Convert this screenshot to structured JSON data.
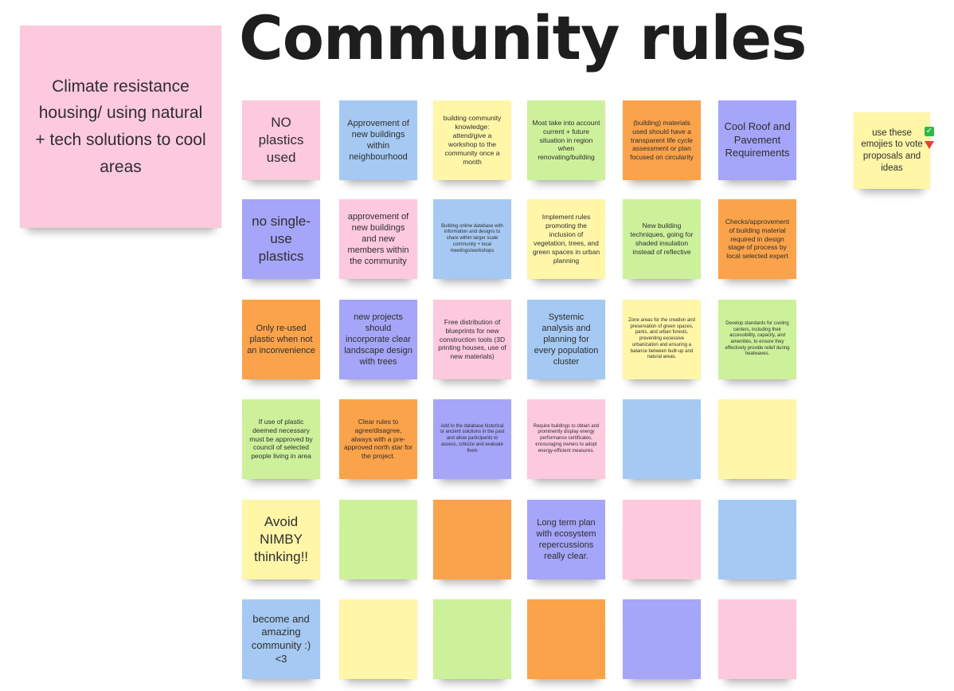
{
  "board": {
    "title": "Community rules",
    "theme_note": "Climate resistance housing/ using natural + tech solutions to cool areas",
    "vote_note": "use these emojies to vote proposals and ideas",
    "vote_icons": [
      "check-icon",
      "red-down-triangle-icon"
    ]
  },
  "colors": {
    "pink": "#fdc9dd",
    "blue": "#a5c9f3",
    "yellow": "#fff6a8",
    "green": "#cdf19b",
    "orange": "#fba34a",
    "violet": "#a5a5f9"
  },
  "grid": [
    [
      {
        "text": "NO plastics used",
        "color": "pink"
      },
      {
        "text": "Approvement of new buildings within neighbourhood",
        "color": "blue"
      },
      {
        "text": "building community knowledge: attend/give a workshop to the community once a month",
        "color": "yellow"
      },
      {
        "text": "Most take into account current + future situation in region when renovating/building",
        "color": "green"
      },
      {
        "text": "(building) materials used should have a transparent life cycle assessment or plan focused on circularity",
        "color": "orange"
      },
      {
        "text": "Cool Roof and Pavement Requirements",
        "color": "violet"
      }
    ],
    [
      {
        "text": "no single-use plastics",
        "color": "violet"
      },
      {
        "text": "approvement of new buildings and new members within the community",
        "color": "pink"
      },
      {
        "text": "Building online database with information and designs to share within larger scale community + local meetings/workshops",
        "color": "blue"
      },
      {
        "text": "Implement rules promoting the inclusion of vegetation, trees, and green spaces in urban planning",
        "color": "yellow"
      },
      {
        "text": "New building techniques, going for shaded insulation instead of reflective",
        "color": "green"
      },
      {
        "text": "Checks/approvement of building material required in design stage of process by local selected expert",
        "color": "orange"
      }
    ],
    [
      {
        "text": "Only re-used plastic when not an inconvenience",
        "color": "orange"
      },
      {
        "text": "new projects should incorporate clear landscape design with trees",
        "color": "violet"
      },
      {
        "text": "Free distribution of blueprints for new construction tools (3D printing houses, use of new materials)",
        "color": "pink"
      },
      {
        "text": "Systemic analysis and planning for every population cluster",
        "color": "blue"
      },
      {
        "text": "Zone areas for the creation and preservation of green spaces, parks, and urban forests, preventing excessive urbanization and ensuring a balance between built-up and natural areas.",
        "color": "yellow"
      },
      {
        "text": "Develop standards for cooling centers, including their accessibility, capacity, and amenities, to ensure they effectively provide relief during heatwaves.",
        "color": "green"
      }
    ],
    [
      {
        "text": "If use of plastic deemed necessary must be approved by council of selected people living in area",
        "color": "green"
      },
      {
        "text": "Clear rules to agree/disagree, always with a pre-approved north star for the project.",
        "color": "orange"
      },
      {
        "text": "Add to the database historical or ancient solutions in the past and allow participants to assess, criticize and evaluate them",
        "color": "violet"
      },
      {
        "text": "Require buildings to obtain and prominently display energy performance certificates, encouraging owners to adopt energy-efficient measures.",
        "color": "pink"
      },
      {
        "text": "",
        "color": "blue"
      },
      {
        "text": "",
        "color": "yellow"
      }
    ],
    [
      {
        "text": "Avoid NIMBY thinking!!",
        "color": "yellow"
      },
      {
        "text": "",
        "color": "green"
      },
      {
        "text": "",
        "color": "orange"
      },
      {
        "text": "Long term plan with ecosystem repercussions really clear.",
        "color": "violet"
      },
      {
        "text": "",
        "color": "pink"
      },
      {
        "text": "",
        "color": "blue"
      }
    ],
    [
      {
        "text": "become and amazing community :) <3",
        "color": "blue"
      },
      {
        "text": "",
        "color": "yellow"
      },
      {
        "text": "",
        "color": "green"
      },
      {
        "text": "",
        "color": "orange"
      },
      {
        "text": "",
        "color": "violet"
      },
      {
        "text": "",
        "color": "pink"
      }
    ]
  ]
}
